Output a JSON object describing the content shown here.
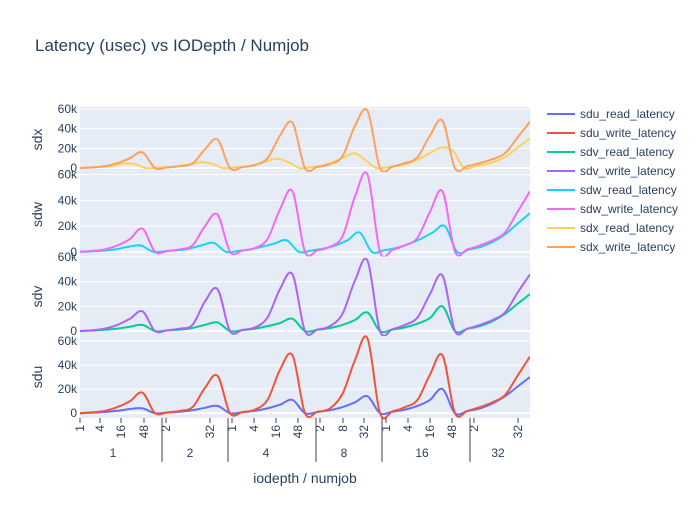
{
  "chart_data": {
    "type": "line",
    "title": "Latency (usec) vs IODepth / Numjob",
    "xlabel": "iodepth / numjob",
    "x_inner_ticks": [
      "1",
      "4",
      "16",
      "48",
      "2",
      "32",
      "1",
      "4",
      "16",
      "48",
      "2",
      "8",
      "32",
      "1",
      "4",
      "16",
      "48",
      "2",
      "32"
    ],
    "x_outer_labels": [
      "1",
      "2",
      "4",
      "8",
      "16",
      "32"
    ],
    "subplots": [
      {
        "ylabel": "sdx",
        "ylim": [
          -4000,
          62000
        ],
        "yticks": [
          "0",
          "20k",
          "40k",
          "60k"
        ],
        "series": [
          "sdx_read_latency",
          "sdx_write_latency"
        ]
      },
      {
        "ylabel": "sdw",
        "ylim": [
          -4000,
          62000
        ],
        "yticks": [
          "0",
          "20k",
          "40k",
          "60k"
        ],
        "series": [
          "sdw_read_latency",
          "sdw_write_latency"
        ]
      },
      {
        "ylabel": "sdv",
        "ylim": [
          -4000,
          60000
        ],
        "yticks": [
          "0",
          "20k",
          "40k",
          "60k"
        ],
        "series": [
          "sdv_read_latency",
          "sdv_write_latency"
        ]
      },
      {
        "ylabel": "sdu",
        "ylim": [
          -4000,
          64000
        ],
        "yticks": [
          "0",
          "20k",
          "40k",
          "60k"
        ],
        "series": [
          "sdu_read_latency",
          "sdu_write_latency"
        ]
      }
    ],
    "legend": {
      "placement": "top-right",
      "entries": [
        {
          "name": "sdu_read_latency",
          "color": "#636efa"
        },
        {
          "name": "sdu_write_latency",
          "color": "#ef553b"
        },
        {
          "name": "sdv_read_latency",
          "color": "#00cc96"
        },
        {
          "name": "sdv_write_latency",
          "color": "#ab63fa"
        },
        {
          "name": "sdw_read_latency",
          "color": "#19d3f3"
        },
        {
          "name": "sdw_write_latency",
          "color": "#f568f5"
        },
        {
          "name": "sdx_read_latency",
          "color": "#ffd15a"
        },
        {
          "name": "sdx_write_latency",
          "color": "#ffa15a"
        }
      ]
    },
    "series_data": {
      "sdx_read_latency": [
        0,
        500,
        1200,
        2500,
        4500,
        4000,
        0,
        400,
        1000,
        2000,
        4000,
        6000,
        4500,
        0,
        700,
        1500,
        3500,
        7000,
        9500,
        6000,
        0,
        1000,
        2500,
        6000,
        10500,
        15000,
        8000,
        0,
        1000,
        2500,
        5000,
        10000,
        16000,
        21000,
        17000,
        0,
        1800,
        4000,
        7500,
        13000,
        22000,
        30000
      ],
      "sdx_write_latency": [
        0,
        700,
        2000,
        5000,
        10000,
        16000,
        0,
        700,
        2000,
        4500,
        19000,
        29000,
        0,
        1000,
        3000,
        10000,
        33000,
        46000,
        0,
        1200,
        4000,
        12000,
        43000,
        58000,
        0,
        1500,
        5000,
        11000,
        33000,
        48000,
        0,
        2000,
        5000,
        9000,
        15000,
        31000,
        47000
      ],
      "sdw_read_latency": [
        0,
        400,
        1000,
        2000,
        4000,
        5000,
        0,
        500,
        1200,
        2500,
        5000,
        7000,
        0,
        700,
        2000,
        4000,
        6500,
        9000,
        0,
        1000,
        2500,
        5000,
        9000,
        15000,
        0,
        1200,
        3000,
        6000,
        10000,
        15000,
        20000,
        0,
        1800,
        4000,
        8000,
        14000,
        22000,
        30000
      ],
      "sdw_write_latency": [
        0,
        700,
        2000,
        5000,
        10000,
        18000,
        0,
        700,
        2000,
        5000,
        20000,
        29000,
        0,
        1000,
        3000,
        10000,
        33000,
        47000,
        0,
        1200,
        4000,
        12000,
        43000,
        60000,
        0,
        1500,
        5000,
        11000,
        31000,
        47000,
        0,
        2000,
        5000,
        9000,
        15000,
        31000,
        47000
      ],
      "sdv_read_latency": [
        0,
        400,
        1000,
        2000,
        3500,
        5000,
        0,
        500,
        1200,
        2500,
        5000,
        7000,
        0,
        700,
        2000,
        4000,
        6500,
        10000,
        0,
        1000,
        2500,
        5000,
        9000,
        15000,
        0,
        1200,
        3000,
        6000,
        10500,
        20000,
        0,
        1800,
        4000,
        8000,
        14000,
        22000,
        30000
      ],
      "sdv_write_latency": [
        0,
        700,
        2000,
        5000,
        10000,
        16000,
        0,
        700,
        2000,
        5000,
        24000,
        34000,
        0,
        1000,
        3000,
        11000,
        34000,
        46000,
        0,
        1200,
        4000,
        14000,
        41000,
        57000,
        0,
        1500,
        5000,
        11000,
        30000,
        45000,
        0,
        2000,
        5000,
        9000,
        15000,
        31000,
        46000
      ],
      "sdu_read_latency": [
        0,
        400,
        1000,
        2000,
        3500,
        4000,
        0,
        500,
        1200,
        2500,
        4500,
        6000,
        0,
        700,
        2000,
        4000,
        7000,
        11000,
        0,
        1000,
        2500,
        5000,
        9000,
        14000,
        0,
        1200,
        3000,
        6000,
        11000,
        20000,
        0,
        1800,
        4000,
        8000,
        14000,
        22000,
        30000
      ],
      "sdu_write_latency": [
        0,
        700,
        2000,
        5000,
        10000,
        17000,
        0,
        700,
        2000,
        5000,
        21000,
        31000,
        0,
        1000,
        3000,
        11000,
        36000,
        48000,
        0,
        1200,
        4000,
        16000,
        44000,
        62000,
        0,
        1500,
        5000,
        11000,
        32000,
        48000,
        0,
        2000,
        5000,
        9000,
        15000,
        31000,
        47000
      ]
    }
  }
}
